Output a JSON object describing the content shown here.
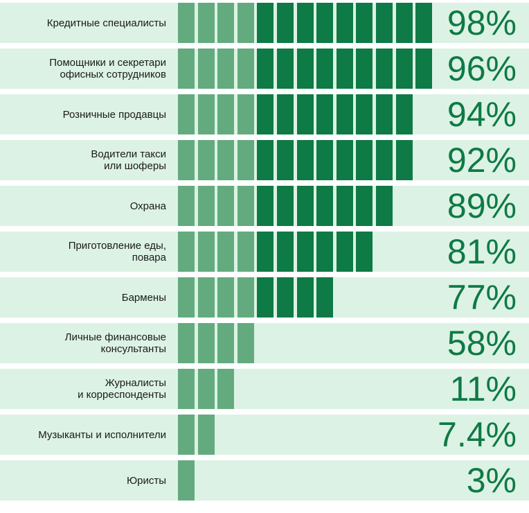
{
  "chart_data": {
    "type": "bar",
    "orientation": "horizontal",
    "categories": [
      "Кредитные специалисты",
      "Помощники и секретари\nофисных сотрудников",
      "Розничные продавцы",
      "Водители такси\nили шоферы",
      "Охрана",
      "Приготовление еды,\nповара",
      "Бармены",
      "Личные финансовые\nконсультанты",
      "Журналисты\nи корреспонденты",
      "Музыканты и исполнители",
      "Юристы"
    ],
    "values": [
      98,
      96,
      94,
      92,
      89,
      81,
      77,
      58,
      11,
      7.4,
      3
    ],
    "value_labels": [
      "98%",
      "96%",
      "94%",
      "92%",
      "89%",
      "81%",
      "77%",
      "58%",
      "11%",
      "7.4%",
      "3%"
    ],
    "segments": {
      "light": [
        4,
        4,
        4,
        4,
        4,
        4,
        4,
        4,
        3,
        2,
        1
      ],
      "dark": [
        9,
        9,
        8,
        8,
        7,
        6,
        4,
        0,
        0,
        0,
        0
      ]
    },
    "colors": {
      "row_background": "#dcf2e4",
      "segment_light": "#63ab7e",
      "segment_dark": "#0e7a45",
      "value_text": "#0e7a45"
    }
  }
}
